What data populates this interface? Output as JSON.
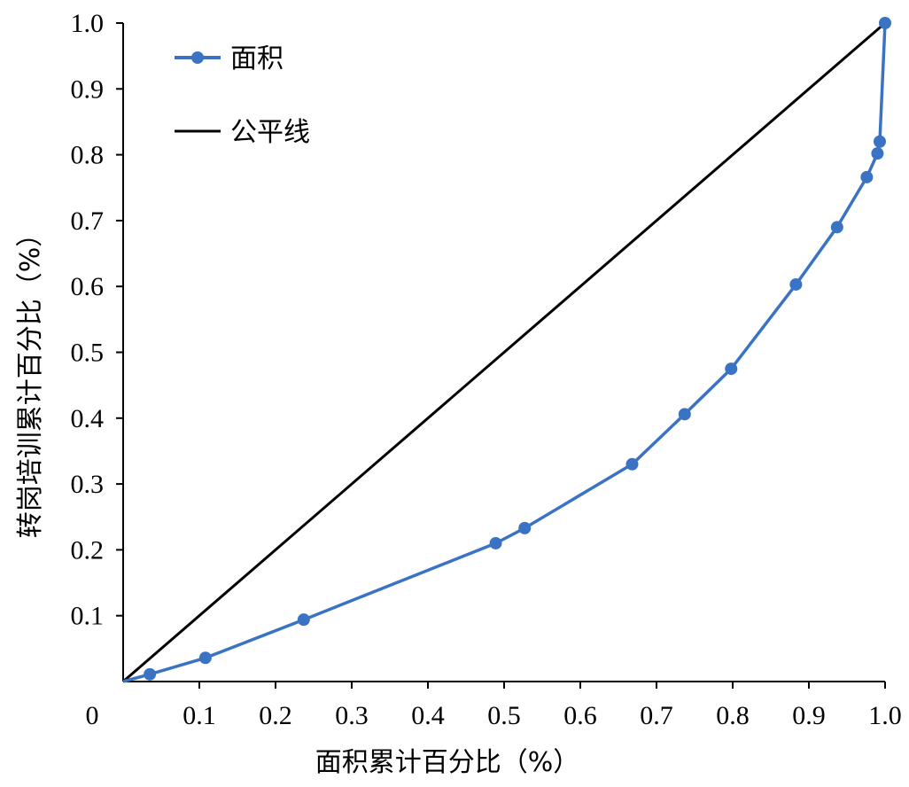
{
  "chart_data": {
    "type": "line",
    "xlabel": "面积累计百分比（%）",
    "ylabel": "转岗培训累计百分比（%）",
    "xlim": [
      0,
      1.0
    ],
    "ylim": [
      0,
      1.0
    ],
    "x_ticks": [
      "0.1",
      "0.2",
      "0.3",
      "0.4",
      "0.5",
      "0.6",
      "0.7",
      "0.8",
      "0.9",
      "1.0"
    ],
    "y_ticks": [
      "0.1",
      "0.2",
      "0.3",
      "0.4",
      "0.5",
      "0.6",
      "0.7",
      "0.8",
      "0.9",
      "1.0"
    ],
    "origin_label": "0",
    "grid": false,
    "legend_position": "top-left",
    "series": [
      {
        "name": "面积",
        "color": "#3b73c4",
        "marker": "circle",
        "x": [
          0,
          0.035,
          0.108,
          0.237,
          0.489,
          0.527,
          0.668,
          0.737,
          0.798,
          0.883,
          0.937,
          0.976,
          0.99,
          0.993,
          1.0
        ],
        "y": [
          0,
          0.011,
          0.036,
          0.094,
          0.21,
          0.233,
          0.33,
          0.406,
          0.475,
          0.603,
          0.69,
          0.766,
          0.802,
          0.82,
          1.0
        ]
      },
      {
        "name": "公平线",
        "color": "#000000",
        "marker": "none",
        "x": [
          0,
          1.0
        ],
        "y": [
          0,
          1.0
        ]
      }
    ]
  }
}
